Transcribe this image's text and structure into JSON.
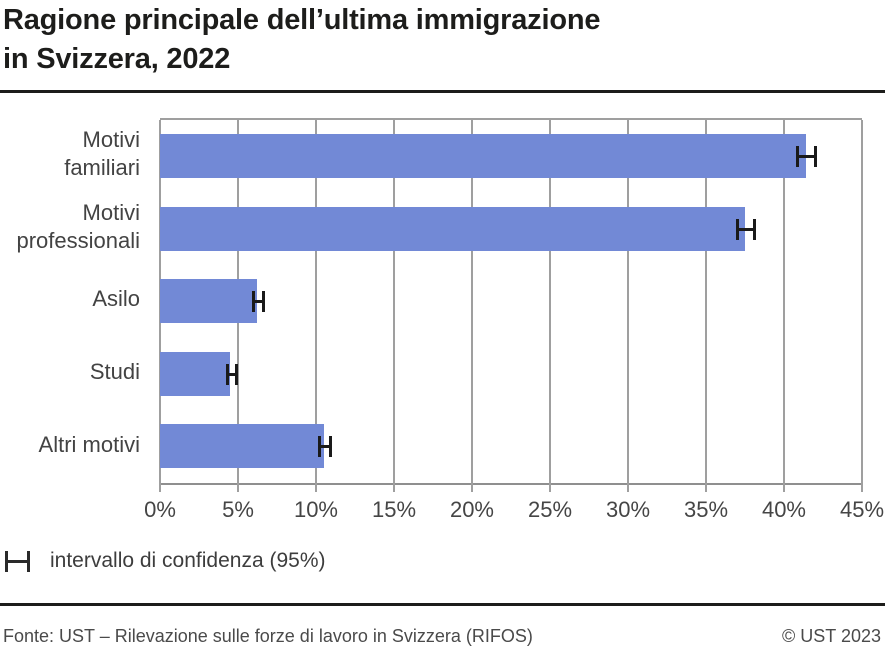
{
  "header": {
    "title": "Ragione principale dell’ultima immigrazione\nin Svizzera, 2022"
  },
  "chart_data": {
    "type": "bar",
    "orientation": "horizontal",
    "title": "Ragione principale dell’ultima immigrazione in Svizzera, 2022",
    "categories": [
      "Motivi familiari",
      "Motivi professionali",
      "Asilo",
      "Studi",
      "Altri motivi"
    ],
    "category_label_lines": [
      "Motivi\nfamiliari",
      "Motivi\nprofessionali",
      "Asilo",
      "Studi",
      "Altri motivi"
    ],
    "values": [
      41.4,
      37.5,
      6.2,
      4.5,
      10.5
    ],
    "confidence_intervals_95": [
      [
        40.8,
        42.1
      ],
      [
        36.9,
        38.2
      ],
      [
        5.9,
        6.7
      ],
      [
        4.2,
        5.0
      ],
      [
        10.1,
        11.0
      ]
    ],
    "unit": "%",
    "xlabel": "",
    "ylabel": "",
    "xlim": [
      0,
      45
    ],
    "x_ticks": [
      "0%",
      "5%",
      "10%",
      "15%",
      "20%",
      "25%",
      "30%",
      "35%",
      "40%",
      "45%"
    ],
    "grid": "vertical-only",
    "legend_position": "bottom-left",
    "bar_color": "#7289d6",
    "gridline_color": "#9f9f9f",
    "errorbar_color": "#1a1a1a"
  },
  "legend": {
    "symbol": "error-bar-icon",
    "label": "intervallo di confidenza (95%)"
  },
  "footer": {
    "source": "Fonte: UST – Rilevazione sulle forze di lavoro in Svizzera (RIFOS)",
    "copyright": "© UST 2023"
  }
}
